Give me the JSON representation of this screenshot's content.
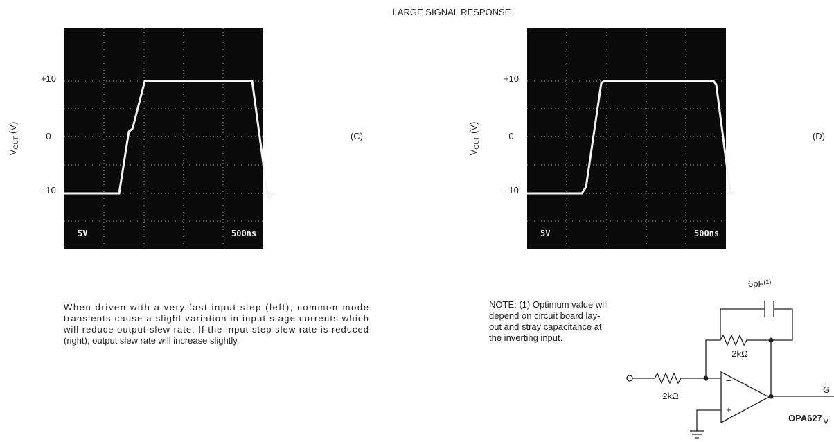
{
  "header": {
    "title": "LARGE SIGNAL RESPONSE"
  },
  "panels": [
    {
      "axis_label": {
        "main": "V",
        "sub": "OUT",
        "unit": " (V)"
      },
      "ticks": [
        "+10",
        "0",
        "–10"
      ],
      "scope_texts": [
        "5V",
        "500ns"
      ],
      "label": "(C)"
    },
    {
      "axis_label": {
        "main": "V",
        "sub": "OUT",
        "unit": " (V)"
      },
      "ticks": [
        "+10",
        "0",
        "–10"
      ],
      "scope_texts": [
        "5V",
        "500ns"
      ],
      "label": "(D)"
    }
  ],
  "paragraph": [
    "When driven with a very fast input step (left), common-mode",
    "transients cause a slight variation in input stage currents which",
    "will reduce output slew rate. If the input step slew rate is reduced",
    "(right), output slew rate will increase slightly."
  ],
  "note": [
    "NOTE: (1) Optimum value will",
    "depend on circuit board lay-",
    "out and stray capacitance at",
    "the inverting input."
  ],
  "circuit": {
    "capacitor": {
      "value": "6pF",
      "footnote": "(1)"
    },
    "feedback_resistor": "2kΩ",
    "input_resistor": "2kΩ",
    "minus": "–",
    "plus": "+",
    "opamp": "OPA627",
    "ground_side": "G",
    "output_side": "V"
  }
}
